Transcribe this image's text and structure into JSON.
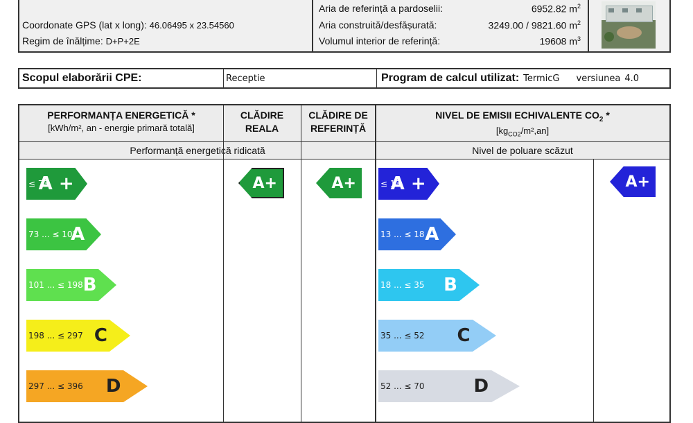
{
  "info": {
    "gps_label": "Coordonate GPS (lat x long):",
    "gps_value": "46.06495 x 23.54560",
    "height_label": "Regim de înălțime:",
    "height_value": "D+P+2E",
    "ref_floor_label": "Aria de referință a pardoselii:",
    "ref_floor_value": "6952.82 m",
    "built_label": "Aria  construită/desfășurată:",
    "built_value": "3249.00 / 9821.60 m",
    "volume_label": "Volumul interior de referință:",
    "volume_value": "19608 m",
    "sup2": "2",
    "sup3": "3"
  },
  "cpe": {
    "scope_label": "Scopul elaborării CPE:",
    "scope_value": "Receptie",
    "program_label": "Program de calcul utilizat:",
    "program_name": "TermicG",
    "version_label": "versiunea",
    "version_value": "4.0"
  },
  "perf": {
    "h1_line1": "PERFORMANȚA ENERGETICĂ *",
    "h1_line2": "[kWh/m², an - energie primară totală]",
    "h2_line1": "CLĂDIRE",
    "h2_line2": "REALA",
    "h3_line1": "CLĂDIRE DE",
    "h3_line2": "REFERINȚĂ",
    "h4_line1": "NIVEL DE EMISII ECHIVALENTE CO",
    "h4_sub": "2",
    "h4_star": " *",
    "h4_line2a": "[kg",
    "h4_line2sub": "CO2",
    "h4_line2b": "/m²,an]",
    "sub_left": "Performanță energetică ridicată",
    "sub_right": "Nivel de poluare scăzut",
    "energy_classes": [
      {
        "range": "≤ 73",
        "cls": "A +",
        "color": "#1f9a3b"
      },
      {
        "range": "73 ... ≤ 101",
        "cls": "A",
        "color": "#3cc442"
      },
      {
        "range": "101 ... ≤ 198",
        "cls": "B",
        "color": "#5fe04f"
      },
      {
        "range": "198 ... ≤ 297",
        "cls": "C",
        "color": "#f5ee1a"
      },
      {
        "range": "297 ... ≤ 396",
        "cls": "D",
        "color": "#f5a623"
      }
    ],
    "co2_classes": [
      {
        "range": "≤ 13",
        "cls": "A +",
        "color": "#2323d8"
      },
      {
        "range": "13 ... ≤ 18",
        "cls": "A",
        "color": "#2e6fe0"
      },
      {
        "range": "18 ... ≤ 35",
        "cls": "B",
        "color": "#2ec6ef"
      },
      {
        "range": "35 ... ≤ 52",
        "cls": "C",
        "color": "#93cdf6"
      },
      {
        "range": "52 ... ≤ 70",
        "cls": "D",
        "color": "#d7dbe3"
      }
    ],
    "real_badge": "A+",
    "ref_badge": "A+",
    "co2_badge": "A+"
  }
}
